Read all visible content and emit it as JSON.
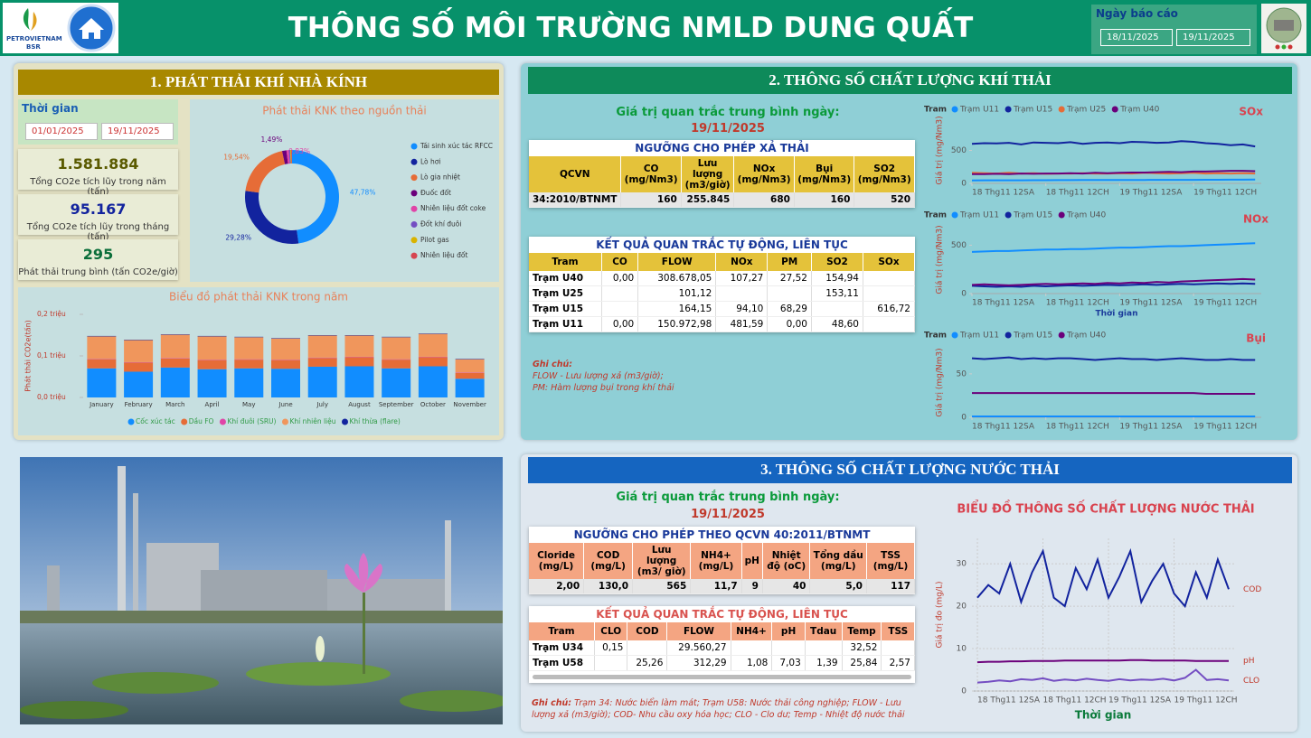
{
  "header": {
    "logo_text": "PETROVIETNAM",
    "logo_sub": "BSR",
    "title": "THÔNG SỐ MÔI TRƯỜNG NMLD DUNG QUẤT",
    "report_label": "Ngày báo cáo",
    "date_from": "18/11/2025",
    "date_to": "19/11/2025"
  },
  "ghg": {
    "title": "1. PHÁT THẢI KHÍ NHÀ KÍNH",
    "time_label": "Thời gian",
    "date_from": "01/01/2025",
    "date_to": "19/11/2025",
    "kpis": [
      {
        "value": "1.581.884",
        "label": "Tổng CO2e tích lũy trong năm (tấn)"
      },
      {
        "value": "95.167",
        "label": "Tổng CO2e tích lũy trong tháng (tấn)"
      },
      {
        "value": "295",
        "label": "Phát thải trung bình (tấn CO2e/giờ)"
      }
    ],
    "donut": {
      "type": "pie",
      "title": "Phát thải KNK theo nguồn thải",
      "categories": [
        "Tái sinh xúc tác RFCC",
        "Lò hơi",
        "Lò gia nhiệt",
        "Đuốc đốt",
        "Nhiên liệu đốt coke",
        "Đốt khí đuôi",
        "Pilot gas",
        "Nhiên liệu đốt"
      ],
      "values": [
        47.78,
        29.28,
        19.54,
        1.49,
        0.83,
        0.46,
        0.36,
        0.26
      ],
      "value_labels": [
        "47,78%",
        "29,28%",
        "19,54%",
        "1,49%",
        "0,83%",
        null,
        null,
        null
      ],
      "colors": [
        "#118dff",
        "#12239e",
        "#e66c37",
        "#6b007b",
        "#e044a7",
        "#744ec2",
        "#d9b300",
        "#d64550"
      ]
    },
    "bar": {
      "type": "bar",
      "title": "Biểu đồ phát thải KNK trong năm",
      "y_label": "Phát thải CO2e(tấn)",
      "categories": [
        "January",
        "February",
        "March",
        "April",
        "May",
        "June",
        "July",
        "August",
        "September",
        "October",
        "November"
      ],
      "ylim": [
        0,
        200000
      ],
      "yticks": [
        {
          "value": 0,
          "label": "0,0 triệu"
        },
        {
          "value": 100000,
          "label": "0,1 triệu"
        },
        {
          "value": 200000,
          "label": "0,2 triệu"
        }
      ],
      "series": [
        {
          "name": "Cốc xúc tác",
          "color": "#118dff",
          "values": [
            70000,
            62000,
            72000,
            68000,
            70000,
            69000,
            74000,
            75000,
            70000,
            75000,
            45000
          ]
        },
        {
          "name": "Dầu FO",
          "color": "#e66c37",
          "values": [
            22000,
            22000,
            22000,
            22000,
            21000,
            21000,
            21000,
            22000,
            21000,
            22000,
            14000
          ]
        },
        {
          "name": "Khí đuôi (SRU)",
          "color": "#e044a7",
          "values": [
            1000,
            1000,
            1000,
            1000,
            1000,
            1000,
            1000,
            1000,
            1000,
            1000,
            1000
          ]
        },
        {
          "name": "Khí nhiên liệu",
          "color": "#f0965c",
          "values": [
            54000,
            53000,
            56000,
            56000,
            53000,
            51000,
            53000,
            51000,
            53000,
            55000,
            32000
          ]
        },
        {
          "name": "Khí thừa (flare)",
          "color": "#12239e",
          "values": [
            1000,
            1000,
            1000,
            1000,
            1000,
            1000,
            1000,
            1000,
            1000,
            1000,
            1000
          ]
        }
      ]
    }
  },
  "air": {
    "title": "2. THÔNG SỐ CHẤT LƯỢNG KHÍ THẢI",
    "avg_label": "Giá trị quan trắc trung bình ngày:",
    "avg_date": "19/11/2025",
    "limits": {
      "title": "NGƯỠNG CHO PHÉP XẢ THẢI",
      "header": [
        "QCVN",
        "CO (mg/Nm3)",
        "Lưu lượng (m3/giờ)",
        "NOx (mg/Nm3)",
        "Bụi (mg/Nm3)",
        "SO2 (mg/Nm3)"
      ],
      "rows": [
        [
          "34:2010/BTNMT",
          "160",
          "255.845",
          "680",
          "160",
          "520"
        ]
      ]
    },
    "monitor": {
      "title": "KẾT QUẢ QUAN TRẮC TỰ ĐỘNG, LIÊN TỤC",
      "header": [
        "Tram",
        "CO",
        "FLOW",
        "NOx",
        "PM",
        "SO2",
        "SOx"
      ],
      "rows": [
        [
          "Trạm U40",
          "0,00",
          "308.678,05",
          "107,27",
          "27,52",
          "154,94",
          null
        ],
        [
          "Trạm U25",
          null,
          "101,12",
          null,
          null,
          "153,11",
          null
        ],
        [
          "Trạm U15",
          null,
          "164,15",
          "94,10",
          "68,29",
          null,
          "616,72"
        ],
        [
          "Trạm U11",
          "0,00",
          "150.972,98",
          "481,59",
          "0,00",
          "48,60",
          null
        ]
      ]
    },
    "note_title": "Ghi chú:",
    "notes": [
      "FLOW - Lưu lượng xả (m3/giờ);",
      "PM: Hàm lượng bụi trong khí thải"
    ],
    "charts": [
      {
        "type": "line",
        "title": "SOx",
        "legend_title": "Tram",
        "y_label": "Giá trị (mg/Nm3)",
        "x": [
          0,
          2,
          4,
          6,
          8,
          10,
          12,
          14,
          16,
          18,
          20,
          22,
          24,
          26,
          28,
          30,
          32,
          34,
          36,
          38,
          40,
          42,
          44,
          46
        ],
        "xlim": [
          0,
          47
        ],
        "xticks": [
          {
            "value": 0,
            "label": "18 Thg11 12SA"
          },
          {
            "value": 12,
            "label": "18 Thg11 12CH"
          },
          {
            "value": 24,
            "label": "19 Thg11 12SA"
          },
          {
            "value": 36,
            "label": "19 Thg11 12CH"
          }
        ],
        "ylim": [
          0,
          1000
        ],
        "yticks": [
          0,
          500
        ],
        "series": [
          {
            "name": "Trạm U11",
            "color": "#118dff",
            "values": [
              45,
              46,
              46,
              47,
              47,
              48,
              48,
              49,
              49,
              50,
              50,
              51,
              51,
              52,
              52,
              53,
              53,
              54,
              54,
              55,
              55,
              56,
              56,
              57
            ]
          },
          {
            "name": "Trạm U15",
            "color": "#12239e",
            "values": [
              600,
              610,
              605,
              615,
              590,
              620,
              615,
              610,
              625,
              600,
              615,
              620,
              610,
              630,
              625,
              615,
              620,
              640,
              630,
              610,
              600,
              580,
              590,
              560
            ]
          },
          {
            "name": "Trạm U25",
            "color": "#e66c37",
            "values": [
              160,
              155,
              150,
              160,
              150,
              155,
              145,
              150,
              150,
              155,
              150,
              150,
              155,
              150,
              160,
              155,
              150,
              155,
              160,
              150,
              155,
              150,
              155,
              150
            ]
          },
          {
            "name": "Trạm U40",
            "color": "#6b007b",
            "values": [
              140,
              140,
              145,
              140,
              150,
              145,
              150,
              150,
              155,
              150,
              160,
              155,
              160,
              165,
              165,
              170,
              175,
              170,
              180,
              180,
              185,
              190,
              190,
              185
            ]
          }
        ]
      },
      {
        "type": "line",
        "title": "NOx",
        "legend_title": "Tram",
        "y_label": "Giá trị (mg/Nm3)",
        "x_label": "Thời gian",
        "x": [
          0,
          2,
          4,
          6,
          8,
          10,
          12,
          14,
          16,
          18,
          20,
          22,
          24,
          26,
          28,
          30,
          32,
          34,
          36,
          38,
          40,
          42,
          44,
          46
        ],
        "xlim": [
          0,
          47
        ],
        "xticks": [
          {
            "value": 0,
            "label": "18 Thg11 12SA"
          },
          {
            "value": 12,
            "label": "18 Thg11 12CH"
          },
          {
            "value": 24,
            "label": "19 Thg11 12SA"
          },
          {
            "value": 36,
            "label": "19 Thg11 12CH"
          }
        ],
        "ylim": [
          0,
          700
        ],
        "yticks": [
          0,
          500
        ],
        "series": [
          {
            "name": "Trạm U11",
            "color": "#118dff",
            "values": [
              430,
              435,
              440,
              440,
              445,
              450,
              455,
              455,
              460,
              460,
              465,
              470,
              475,
              475,
              480,
              485,
              490,
              490,
              495,
              500,
              505,
              510,
              515,
              520
            ]
          },
          {
            "name": "Trạm U15",
            "color": "#12239e",
            "values": [
              80,
              75,
              70,
              75,
              70,
              80,
              75,
              80,
              85,
              80,
              85,
              90,
              85,
              90,
              95,
              90,
              95,
              100,
              95,
              100,
              105,
              100,
              105,
              100
            ]
          },
          {
            "name": "Trạm U40",
            "color": "#6b007b",
            "values": [
              90,
              95,
              90,
              85,
              90,
              95,
              100,
              95,
              100,
              105,
              100,
              110,
              105,
              115,
              110,
              120,
              115,
              125,
              130,
              135,
              140,
              145,
              150,
              145
            ]
          }
        ]
      },
      {
        "type": "line",
        "title": "Bụi",
        "legend_title": "Tram",
        "y_label": "Giá trị (mg/Nm3)",
        "x": [
          0,
          2,
          4,
          6,
          8,
          10,
          12,
          14,
          16,
          18,
          20,
          22,
          24,
          26,
          28,
          30,
          32,
          34,
          36,
          38,
          40,
          42,
          44,
          46
        ],
        "xlim": [
          0,
          47
        ],
        "xticks": [
          {
            "value": 0,
            "label": "18 Thg11 12SA"
          },
          {
            "value": 12,
            "label": "18 Thg11 12CH"
          },
          {
            "value": 24,
            "label": "19 Thg11 12SA"
          },
          {
            "value": 36,
            "label": "19 Thg11 12CH"
          }
        ],
        "ylim": [
          0,
          80
        ],
        "yticks": [
          0,
          50
        ],
        "series": [
          {
            "name": "Trạm U11",
            "color": "#118dff",
            "values": [
              1,
              1,
              1,
              1,
              1,
              1,
              1,
              1,
              1,
              1,
              1,
              1,
              1,
              1,
              1,
              1,
              1,
              1,
              1,
              1,
              1,
              1,
              1,
              1
            ]
          },
          {
            "name": "Trạm U15",
            "color": "#12239e",
            "values": [
              68,
              67,
              68,
              69,
              67,
              68,
              67,
              68,
              68,
              67,
              66,
              67,
              68,
              67,
              67,
              66,
              67,
              68,
              67,
              66,
              66,
              67,
              66,
              66
            ]
          },
          {
            "name": "Trạm U40",
            "color": "#6b007b",
            "values": [
              28,
              28,
              28,
              28,
              28,
              28,
              28,
              28,
              28,
              28,
              28,
              28,
              28,
              28,
              28,
              28,
              28,
              28,
              28,
              27,
              27,
              27,
              27,
              27
            ]
          }
        ]
      }
    ]
  },
  "water": {
    "title": "3. THÔNG SỐ CHẤT LƯỢNG NƯỚC THẢI",
    "avg_label": "Giá trị quan trắc trung bình ngày:",
    "avg_date": "19/11/2025",
    "limits": {
      "title": "NGƯỠNG CHO PHÉP THEO QCVN 40:2011/BTNMT",
      "header": [
        "Cloride (mg/L)",
        "COD (mg/L)",
        "Lưu lượng (m3/ giờ)",
        "NH4+ (mg/L)",
        "pH",
        "Nhiệt độ (oC)",
        "Tổng dầu (mg/L)",
        "TSS (mg/L)"
      ],
      "rows": [
        [
          "2,00",
          "130,0",
          "565",
          "11,7",
          "9",
          "40",
          "5,0",
          "117"
        ]
      ]
    },
    "monitor": {
      "title": "KẾT QUẢ QUAN TRẮC TỰ ĐỘNG, LIÊN TỤC",
      "header": [
        "Tram",
        "CLO",
        "COD",
        "FLOW",
        "NH4+",
        "pH",
        "Tdau",
        "Temp",
        "TSS"
      ],
      "rows": [
        [
          "Trạm U34",
          "0,15",
          null,
          "29.560,27",
          null,
          null,
          null,
          "32,52",
          null
        ],
        [
          "Trạm U58",
          null,
          "25,26",
          "312,29",
          "1,08",
          "7,03",
          "1,39",
          "25,84",
          "2,57"
        ]
      ]
    },
    "note_title": "Ghi chú:",
    "note": "Trạm 34: Nước biển làm mát; Trạm U58: Nước thải công nghiệp; FLOW - Lưu lượng xả (m3/giờ);  COD- Nhu cầu oxy hóa học; CLO - Clo dư; Temp - Nhiệt độ nước thải",
    "chart": {
      "type": "line",
      "title": "BIỂU ĐỒ THÔNG SỐ CHẤT LƯỢNG NƯỚC THẢI",
      "y_label": "Giá trị đo (mg/L)",
      "x_label": "Thời gian",
      "end_labels": true,
      "grid": true,
      "x": [
        0,
        2,
        4,
        6,
        8,
        10,
        12,
        14,
        16,
        18,
        20,
        22,
        24,
        26,
        28,
        30,
        32,
        34,
        36,
        38,
        40,
        42,
        44,
        46
      ],
      "xlim": [
        -1,
        47
      ],
      "xticks": [
        {
          "value": 0,
          "label": "18 Thg11 12SA"
        },
        {
          "value": 12,
          "label": "18 Thg11 12CH"
        },
        {
          "value": 24,
          "label": "19 Thg11 12SA"
        },
        {
          "value": 36,
          "label": "19 Thg11 12CH"
        }
      ],
      "ylim": [
        0,
        36
      ],
      "yticks": [
        0,
        10,
        20,
        30
      ],
      "series": [
        {
          "name": "COD",
          "color": "#12239e",
          "values": [
            22,
            25,
            23,
            30,
            21,
            28,
            33,
            22,
            20,
            29,
            24,
            31,
            22,
            27,
            33,
            21,
            26,
            30,
            23,
            20,
            28,
            22,
            31,
            24
          ]
        },
        {
          "name": "pH",
          "color": "#6b007b",
          "values": [
            6.8,
            6.9,
            6.9,
            7.0,
            7.0,
            7.1,
            7.1,
            7.1,
            7.2,
            7.2,
            7.2,
            7.2,
            7.2,
            7.2,
            7.3,
            7.3,
            7.2,
            7.2,
            7.2,
            7.2,
            7.1,
            7.1,
            7.1,
            7.1
          ]
        },
        {
          "name": "CLO",
          "color": "#744ec2",
          "values": [
            2.0,
            2.2,
            2.5,
            2.3,
            2.8,
            2.6,
            3.0,
            2.4,
            2.7,
            2.5,
            2.9,
            2.6,
            2.4,
            2.8,
            2.5,
            2.7,
            2.6,
            2.9,
            2.5,
            3.1,
            5.0,
            2.6,
            2.8,
            2.5
          ]
        }
      ]
    }
  }
}
